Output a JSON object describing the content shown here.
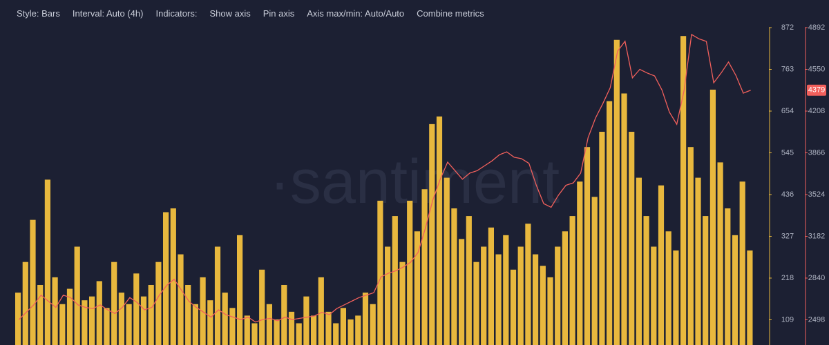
{
  "toolbar": [
    "Style: Bars",
    "Interval: Auto (4h)",
    "Indicators:",
    "Show axis",
    "Pin axis",
    "Axis max/min: Auto/Auto",
    "Combine metrics"
  ],
  "chart_data": {
    "type": "bar-line",
    "watermark": "·santiment",
    "series": [
      {
        "color": "#e8b83e",
        "values": [
          180,
          260,
          370,
          200,
          475,
          220,
          150,
          190,
          300,
          160,
          170,
          210,
          140,
          260,
          180,
          150,
          230,
          170,
          200,
          260,
          390,
          400,
          280,
          200,
          150,
          220,
          160,
          300,
          180,
          140,
          330,
          120,
          100,
          240,
          150,
          110,
          200,
          130,
          100,
          170,
          120,
          220,
          130,
          100,
          140,
          110,
          120,
          180,
          150,
          420,
          300,
          380,
          260,
          420,
          340,
          450,
          620,
          640,
          480,
          400,
          320,
          380,
          260,
          300,
          350,
          280,
          330,
          240,
          300,
          360,
          280,
          250,
          220,
          300,
          340,
          380,
          470,
          560,
          430,
          600,
          680,
          840,
          700,
          600,
          480,
          380,
          300,
          460,
          340,
          290,
          850,
          560,
          480,
          380,
          710,
          520,
          400,
          330,
          470,
          290
        ]
      },
      {
        "color": "#f2605c",
        "axis": "y2",
        "values": [
          2500,
          2560,
          2620,
          2700,
          2650,
          2600,
          2700,
          2680,
          2620,
          2600,
          2590,
          2620,
          2580,
          2550,
          2600,
          2680,
          2640,
          2580,
          2600,
          2700,
          2780,
          2830,
          2740,
          2650,
          2600,
          2560,
          2520,
          2580,
          2540,
          2520,
          2500,
          2520,
          2480,
          2500,
          2510,
          2490,
          2520,
          2500,
          2510,
          2520,
          2530,
          2560,
          2540,
          2590,
          2620,
          2650,
          2680,
          2700,
          2720,
          2850,
          2880,
          2900,
          2930,
          2970,
          3050,
          3250,
          3480,
          3650,
          3790,
          3720,
          3650,
          3700,
          3720,
          3760,
          3800,
          3850,
          3874,
          3830,
          3818,
          3780,
          3600,
          3450,
          3420,
          3520,
          3600,
          3620,
          3700,
          3990,
          4150,
          4270,
          4400,
          4700,
          4780,
          4480,
          4550,
          4520,
          4496,
          4380,
          4200,
          4100,
          4380,
          4836,
          4800,
          4779,
          4440,
          4520,
          4610,
          4500,
          4355,
          4379
        ]
      }
    ],
    "ylim": [
      0,
      872
    ],
    "yticks": [
      109,
      218,
      327,
      436,
      545,
      654,
      763,
      872
    ],
    "y2lim": [
      2156,
      4892
    ],
    "y2ticks": [
      2498,
      2840,
      3182,
      3524,
      3866,
      4208,
      4550,
      4892
    ]
  }
}
